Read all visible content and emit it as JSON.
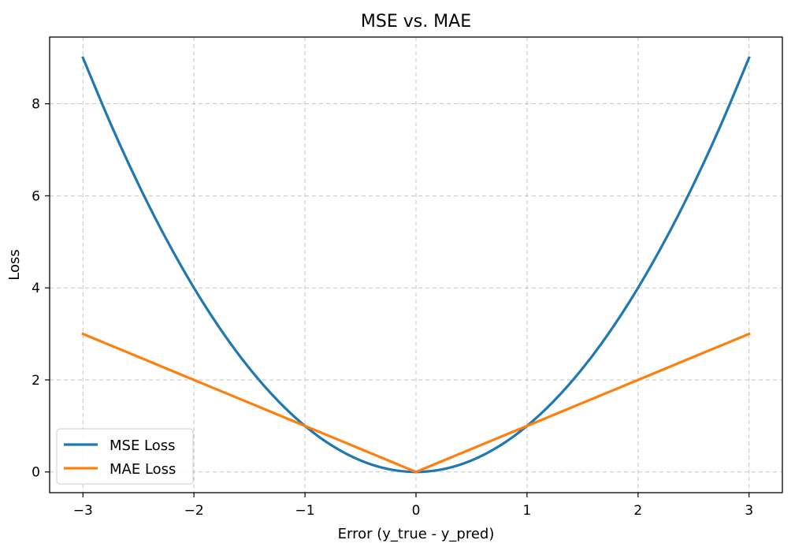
{
  "chart_data": {
    "type": "line",
    "title": "MSE vs. MAE",
    "xlabel": "Error (y_true - y_pred)",
    "ylabel": "Loss",
    "xlim": [
      -3.3,
      3.3
    ],
    "ylim": [
      -0.45,
      9.45
    ],
    "xticks": [
      -3,
      -2,
      -1,
      0,
      1,
      2,
      3
    ],
    "xtick_labels": [
      "−3",
      "−2",
      "−1",
      "0",
      "1",
      "2",
      "3"
    ],
    "yticks": [
      0,
      2,
      4,
      6,
      8
    ],
    "ytick_labels": [
      "0",
      "2",
      "4",
      "6",
      "8"
    ],
    "grid": true,
    "legend_position": "lower-left",
    "x": [
      -3,
      -2.75,
      -2.5,
      -2.25,
      -2,
      -1.75,
      -1.5,
      -1.25,
      -1,
      -0.75,
      -0.5,
      -0.25,
      0,
      0.25,
      0.5,
      0.75,
      1,
      1.25,
      1.5,
      1.75,
      2,
      2.25,
      2.5,
      2.75,
      3
    ],
    "series": [
      {
        "name": "MSE Loss",
        "color": "#1f77b4",
        "values": [
          9,
          7.5625,
          6.25,
          5.0625,
          4,
          3.0625,
          2.25,
          1.5625,
          1,
          0.5625,
          0.25,
          0.0625,
          0,
          0.0625,
          0.25,
          0.5625,
          1,
          1.5625,
          2.25,
          3.0625,
          4,
          5.0625,
          6.25,
          7.5625,
          9
        ]
      },
      {
        "name": "MAE Loss",
        "color": "#ff7f0e",
        "values": [
          3,
          2.75,
          2.5,
          2.25,
          2,
          1.75,
          1.5,
          1.25,
          1,
          0.75,
          0.5,
          0.25,
          0,
          0.25,
          0.5,
          0.75,
          1,
          1.25,
          1.5,
          1.75,
          2,
          2.25,
          2.5,
          2.75,
          3
        ]
      }
    ]
  }
}
